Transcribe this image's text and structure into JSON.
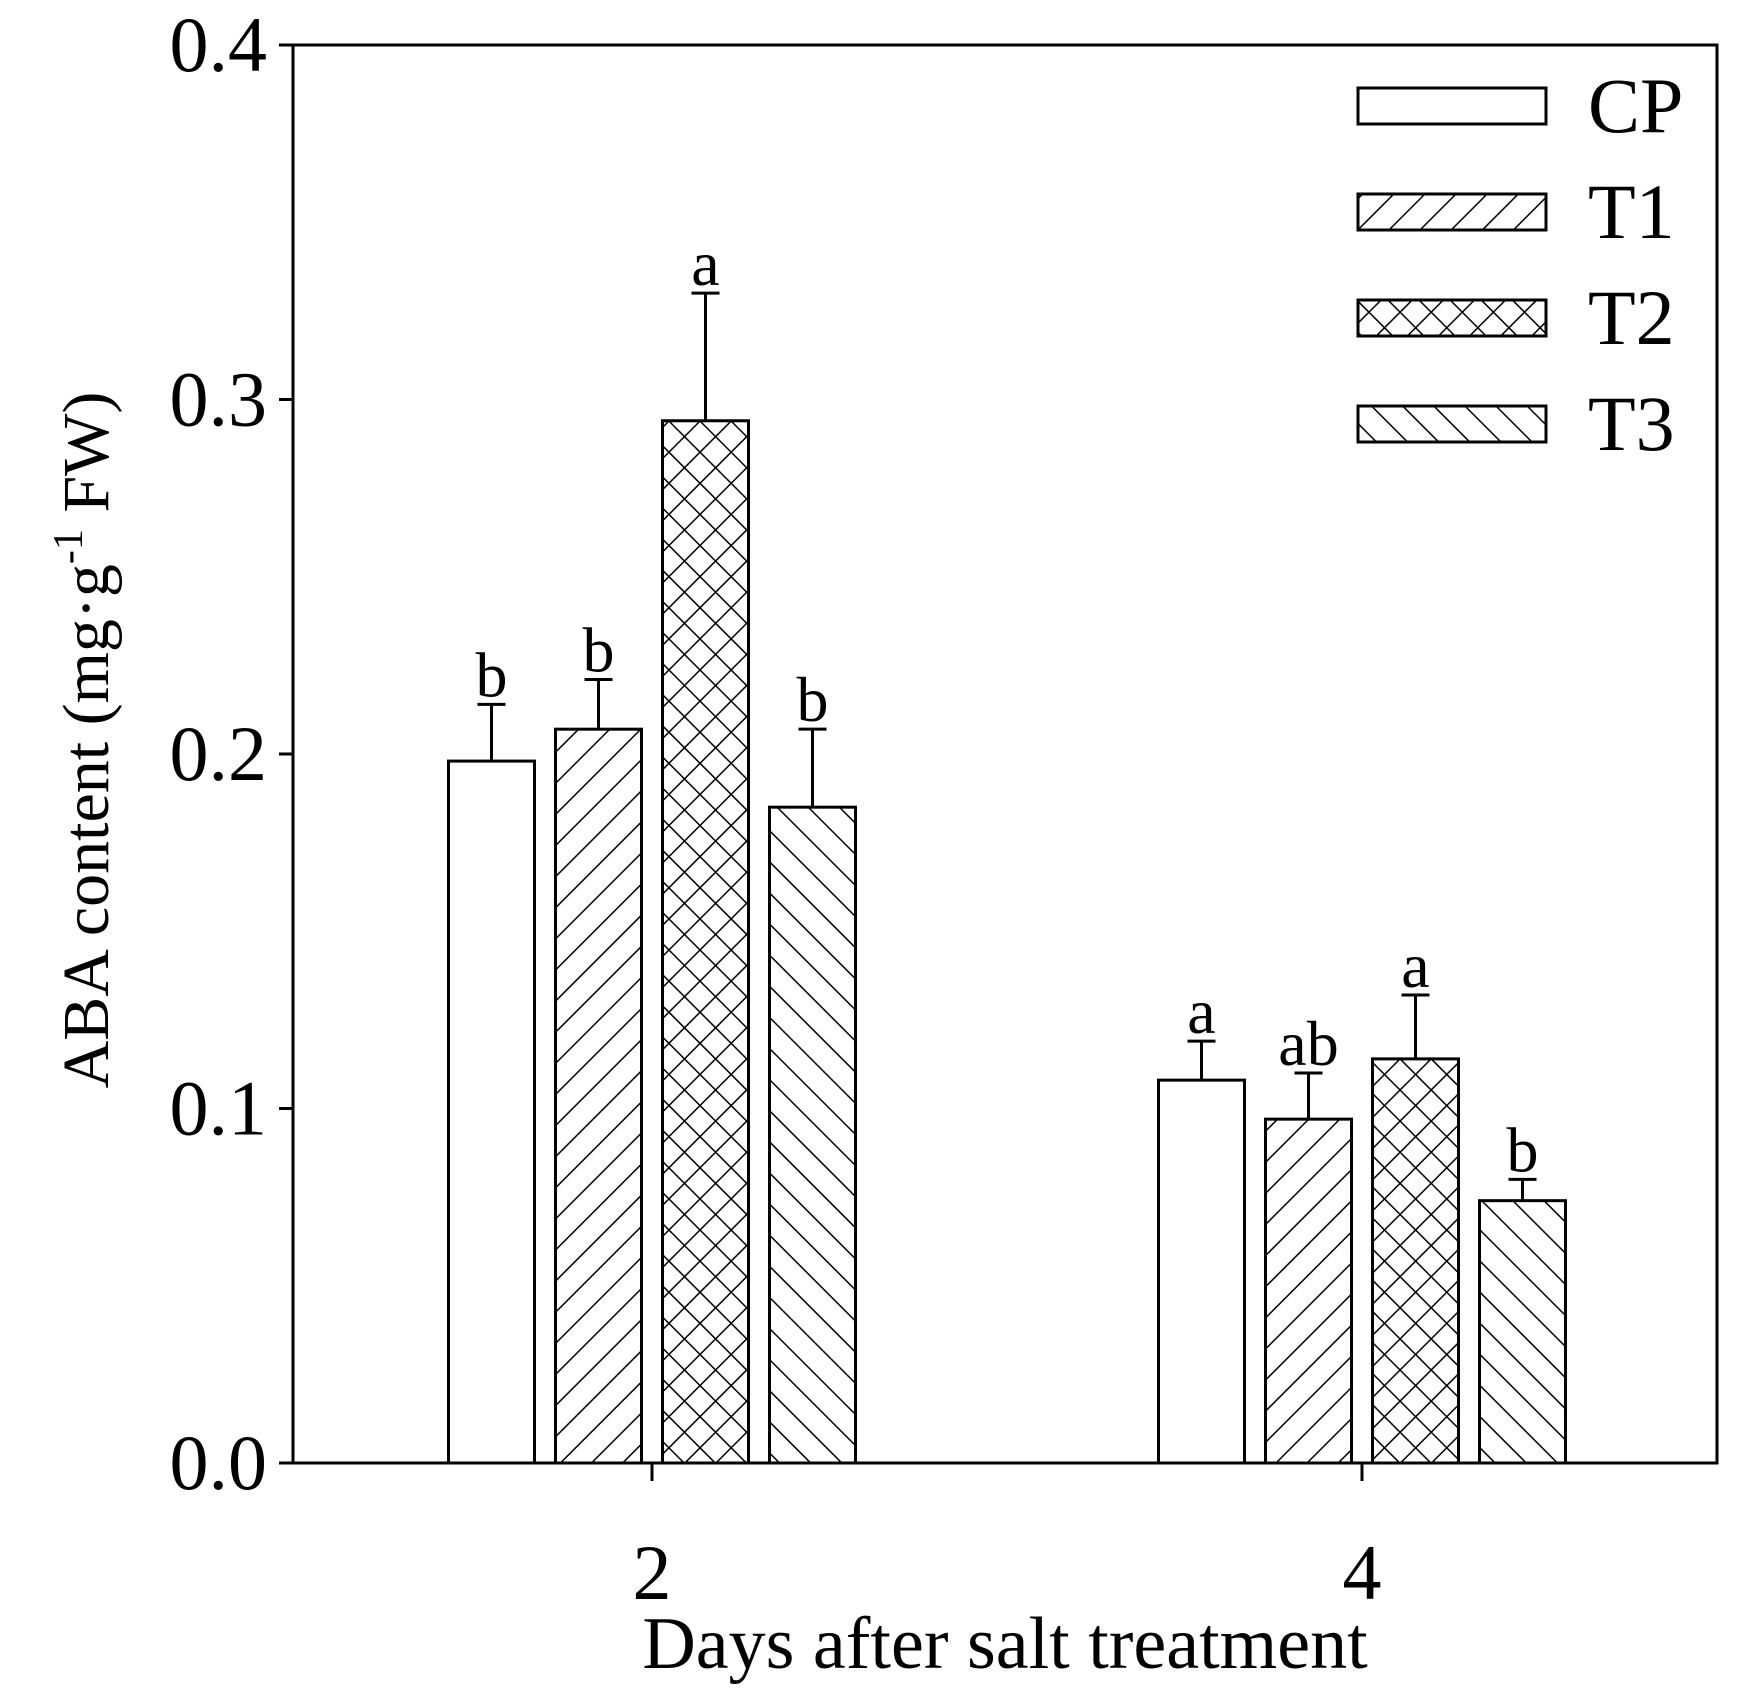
{
  "chart_data": {
    "type": "bar",
    "title": "",
    "xlabel": "Days after salt treatment",
    "ylabel": {
      "pre": "ABA content (mg",
      "dot": "·",
      "unit": "g",
      "sup": "-1",
      "post": " FW)"
    },
    "categories": [
      "2",
      "4"
    ],
    "ylim": [
      0,
      0.4
    ],
    "yticks": [
      "0.0",
      "0.1",
      "0.2",
      "0.3",
      "0.4"
    ],
    "legend_position": "top-right",
    "series": [
      {
        "name": "CP",
        "pattern": "none",
        "values": [
          0.198,
          0.108
        ],
        "errors": [
          0.016,
          0.011
        ],
        "letters": [
          "b",
          "a"
        ]
      },
      {
        "name": "T1",
        "pattern": "forward-diagonal",
        "values": [
          0.207,
          0.097
        ],
        "errors": [
          0.014,
          0.013
        ],
        "letters": [
          "b",
          "ab"
        ]
      },
      {
        "name": "T2",
        "pattern": "crosshatch",
        "values": [
          0.294,
          0.114
        ],
        "errors": [
          0.036,
          0.018
        ],
        "letters": [
          "a",
          "a"
        ]
      },
      {
        "name": "T3",
        "pattern": "backward-diagonal",
        "values": [
          0.185,
          0.074
        ],
        "errors": [
          0.022,
          0.006
        ],
        "letters": [
          "b",
          "b"
        ]
      }
    ]
  }
}
